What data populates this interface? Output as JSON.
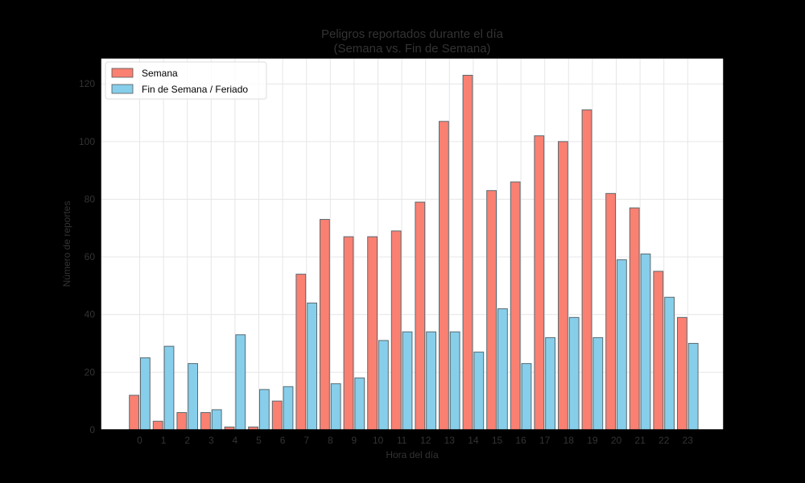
{
  "chart_data": {
    "type": "bar",
    "title": "Peligros reportados durante el día",
    "subtitle": "(Semana vs. Fin de Semana)",
    "xlabel": "Hora del día",
    "ylabel": "Número de reportes",
    "categories": [
      "0",
      "1",
      "2",
      "3",
      "4",
      "5",
      "6",
      "7",
      "8",
      "9",
      "10",
      "11",
      "12",
      "13",
      "14",
      "15",
      "16",
      "17",
      "18",
      "19",
      "20",
      "21",
      "22",
      "23"
    ],
    "series": [
      {
        "name": "Semana",
        "color": "#FA8072",
        "values": [
          12,
          3,
          6,
          6,
          1,
          1,
          10,
          54,
          73,
          67,
          67,
          69,
          79,
          107,
          123,
          83,
          86,
          102,
          100,
          111,
          82,
          77,
          55,
          39
        ]
      },
      {
        "name": "Fin de Semana / Feriado",
        "color": "#87CEEB",
        "values": [
          25,
          29,
          23,
          7,
          33,
          14,
          15,
          44,
          16,
          18,
          31,
          34,
          34,
          34,
          27,
          42,
          23,
          32,
          39,
          32,
          59,
          61,
          46,
          30
        ]
      }
    ],
    "ylim": [
      0,
      129
    ],
    "yticks": [
      0,
      20,
      40,
      60,
      80,
      100,
      120
    ],
    "grid": true,
    "legend_position": "top-left"
  }
}
